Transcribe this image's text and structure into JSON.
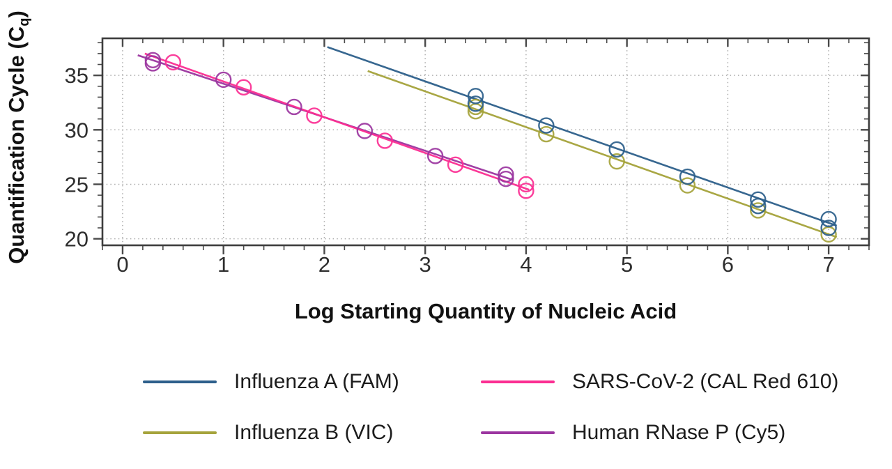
{
  "chart_data": {
    "type": "scatter",
    "title": "",
    "xlabel": "Log Starting Quantity of Nucleic Acid",
    "ylabel": {
      "text": "Quantification Cycle (C",
      "subscript": "q",
      "suffix": ")"
    },
    "xlim": [
      -0.2,
      7.4
    ],
    "ylim": [
      19.4,
      38.4
    ],
    "xticks": {
      "major": [
        0,
        1,
        2,
        3,
        4,
        5,
        6,
        7
      ],
      "labels": [
        "0",
        "1",
        "2",
        "3",
        "4",
        "5",
        "6",
        "7"
      ],
      "minor_step": 0.2
    },
    "yticks": {
      "major": [
        20,
        25,
        30,
        35
      ],
      "labels": [
        "20",
        "25",
        "30",
        "35"
      ],
      "minor_step": 1
    },
    "grid": {
      "style": "dotted",
      "color": "#ABABAB",
      "x_lines": [
        0,
        1,
        2,
        3,
        4,
        5,
        6,
        7
      ],
      "y_lines": [
        20,
        25,
        30,
        35
      ]
    },
    "axis_color": "#3D3D3D",
    "tick_color": "#4A4A4A",
    "tick_label_color": "#2E2E2E",
    "marker": "open-circle",
    "series": [
      {
        "name": "Influenza A (FAM)",
        "color": "#2D5F8B",
        "points": [
          [
            3.5,
            33.1
          ],
          [
            3.5,
            32.4
          ],
          [
            4.2,
            30.4
          ],
          [
            4.9,
            28.2
          ],
          [
            5.6,
            25.7
          ],
          [
            6.3,
            23.6
          ],
          [
            6.3,
            23.0
          ],
          [
            7.0,
            21.8
          ],
          [
            7.0,
            21.0
          ]
        ],
        "trendline": [
          [
            2.03,
            37.6
          ],
          [
            7.08,
            21.2
          ]
        ]
      },
      {
        "name": "Influenza B (VIC)",
        "color": "#A5A33B",
        "points": [
          [
            3.5,
            32.1
          ],
          [
            3.5,
            31.7
          ],
          [
            4.2,
            29.6
          ],
          [
            4.9,
            27.1
          ],
          [
            5.6,
            24.9
          ],
          [
            6.3,
            22.6
          ],
          [
            7.0,
            20.4
          ]
        ],
        "trendline": [
          [
            2.43,
            35.4
          ],
          [
            7.08,
            20.15
          ]
        ]
      },
      {
        "name": "SARS-CoV-2 (CAL Red 610)",
        "color": "#FB2E92",
        "points": [
          [
            0.5,
            36.2
          ],
          [
            1.2,
            33.9
          ],
          [
            1.9,
            31.3
          ],
          [
            2.6,
            29.0
          ],
          [
            3.3,
            26.8
          ],
          [
            4.0,
            25.0
          ],
          [
            4.0,
            24.4
          ]
        ],
        "trendline": [
          [
            0.22,
            37.0
          ],
          [
            4.03,
            24.5
          ]
        ]
      },
      {
        "name": "Human RNase P (Cy5)",
        "color": "#9B35A0",
        "points": [
          [
            0.3,
            36.4
          ],
          [
            0.3,
            36.1
          ],
          [
            1.0,
            34.6
          ],
          [
            1.7,
            32.1
          ],
          [
            2.4,
            29.9
          ],
          [
            3.1,
            27.6
          ],
          [
            3.8,
            25.9
          ],
          [
            3.8,
            25.5
          ]
        ],
        "trendline": [
          [
            0.15,
            36.85
          ],
          [
            3.87,
            25.4
          ]
        ]
      }
    ],
    "legend_position": "bottom"
  },
  "legend": {
    "entries": [
      {
        "label": "Influenza A (FAM)",
        "series": 0
      },
      {
        "label": "Influenza B (VIC)",
        "series": 1
      },
      {
        "label": "SARS-CoV-2 (CAL Red 610)",
        "series": 2
      },
      {
        "label": "Human RNase P (Cy5)",
        "series": 3
      }
    ]
  }
}
